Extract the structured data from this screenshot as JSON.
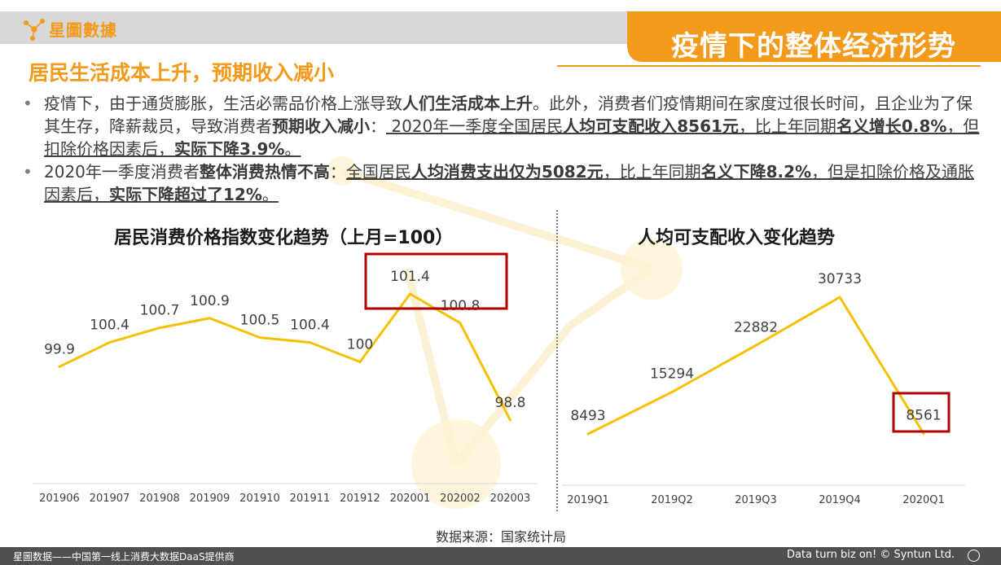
{
  "header": {
    "logo_text": "星圖數據",
    "title": "疫情下的整体经济形势"
  },
  "section": {
    "subtitle": "居民生活成本上升，预期收入减小"
  },
  "bullets": [
    {
      "parts": [
        {
          "t": "疫情下，由于通货膨胀，生活必需品价格上涨导致",
          "b": false,
          "u": false
        },
        {
          "t": "人们生活成本上升",
          "b": true,
          "u": false
        },
        {
          "t": "。此外，消费者们疫情期间在家度过很长时间，且企业为了保其生存，降薪裁员，导致消费者",
          "b": false,
          "u": false
        },
        {
          "t": "预期收入减小",
          "b": true,
          "u": false
        },
        {
          "t": "：",
          "b": false,
          "u": false
        },
        {
          "t": " 2020年一季度全国居民",
          "b": false,
          "u": true
        },
        {
          "t": "人均可支配收入8561元",
          "b": true,
          "u": true
        },
        {
          "t": "，比上年同期",
          "b": false,
          "u": true
        },
        {
          "t": "名义增长0.8%",
          "b": true,
          "u": true
        },
        {
          "t": "，但扣除价格因素后，",
          "b": false,
          "u": true
        },
        {
          "t": "实际下降3.9%",
          "b": true,
          "u": true
        },
        {
          "t": "。",
          "b": false,
          "u": true
        }
      ]
    },
    {
      "parts": [
        {
          "t": "2020年一季度消费者",
          "b": false,
          "u": false
        },
        {
          "t": "整体消费热情不高",
          "b": true,
          "u": false
        },
        {
          "t": "：",
          "b": false,
          "u": false
        },
        {
          "t": "全国居民",
          "b": false,
          "u": true
        },
        {
          "t": "人均消费支出仅为5082元",
          "b": true,
          "u": true
        },
        {
          "t": "，比上年同期",
          "b": false,
          "u": true
        },
        {
          "t": "名义下降8.2%",
          "b": true,
          "u": true
        },
        {
          "t": "，但是扣除价格及通胀因素后，",
          "b": false,
          "u": true
        },
        {
          "t": "实际下降超过了12%",
          "b": true,
          "u": true
        },
        {
          "t": "。",
          "b": false,
          "u": true
        }
      ]
    }
  ],
  "chart_data": [
    {
      "type": "line",
      "title": "居民消费价格指数变化趋势（上月=100）",
      "categories": [
        "201906",
        "201907",
        "201908",
        "201909",
        "201910",
        "201911",
        "201912",
        "202001",
        "202002",
        "202003"
      ],
      "values": [
        99.9,
        100.4,
        100.7,
        100.9,
        100.5,
        100.4,
        100,
        101.4,
        100.8,
        98.8
      ],
      "value_labels": [
        "99.9",
        "100.4",
        "100.7",
        "100.9",
        "100.5",
        "100.4",
        "100",
        "101.4",
        "100.8",
        "98.8"
      ],
      "highlight_indices": [
        7,
        8
      ],
      "line_color": "#f5c000",
      "highlight_color": "#b00000"
    },
    {
      "type": "line",
      "title": "人均可支配收入变化趋势",
      "categories": [
        "2019Q1",
        "2019Q2",
        "2019Q3",
        "2019Q4",
        "2020Q1"
      ],
      "values": [
        8493,
        15294,
        22882,
        30733,
        8561
      ],
      "value_labels": [
        "8493",
        "15294",
        "22882",
        "30733",
        "8561"
      ],
      "highlight_indices": [
        4
      ],
      "line_color": "#f5c000",
      "highlight_color": "#b00000"
    }
  ],
  "source": "数据来源：国家统计局",
  "footer": {
    "left": "星圖数据——中国第一线上消费大数据DaaS提供商",
    "right": "Data turn biz on! © Syntun Ltd."
  },
  "colors": {
    "accent": "#f39a1a",
    "footer_bg": "#505050",
    "topbar_bg": "#d8d8d8"
  }
}
